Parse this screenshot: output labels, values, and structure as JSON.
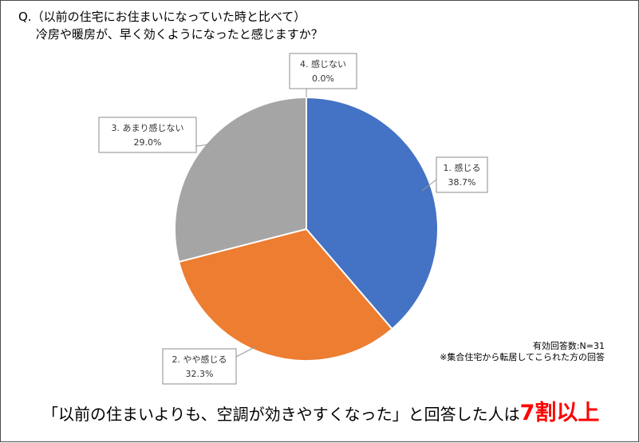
{
  "question": {
    "line1": "Q.（以前の住宅にお住まいになっていた時と比べて）",
    "line2": "冷房や暖房が、早く効くようになったと感じますか？"
  },
  "chart_data": {
    "type": "pie",
    "title": "",
    "slices": [
      {
        "label": "1. 感じる",
        "value": 38.7,
        "display": "38.7%",
        "color": "#4472c4"
      },
      {
        "label": "2. やや感じる",
        "value": 32.3,
        "display": "32.3%",
        "color": "#ed7d31"
      },
      {
        "label": "3. あまり感じない",
        "value": 29.0,
        "display": "29.0%",
        "color": "#a5a5a5"
      },
      {
        "label": "4. 感じない",
        "value": 0.0,
        "display": "0.0%",
        "color": "#ffc000"
      }
    ]
  },
  "note": {
    "responses": "有効回答数:N=31",
    "footnote": "※集合住宅から転居してこられた方の回答"
  },
  "conclusion": {
    "text": "「以前の住まいよりも、空調が効きやすくなった」と回答した人は",
    "highlight": "7割以上"
  }
}
